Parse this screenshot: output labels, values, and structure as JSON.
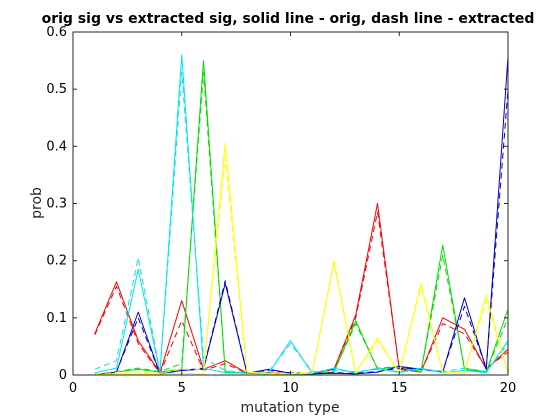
{
  "chart_data": {
    "type": "line",
    "title": "orig sig vs extracted sig, solid line - orig, dash line - extracted",
    "xlabel": "mutation type",
    "ylabel": "prob",
    "xlim": [
      0,
      20
    ],
    "ylim": [
      0,
      0.6
    ],
    "xticks": [
      0,
      5,
      10,
      15,
      20
    ],
    "yticks": [
      0,
      0.1,
      0.2,
      0.3,
      0.4,
      0.5,
      0.6
    ],
    "grid": false,
    "legend": "none",
    "x": [
      1,
      2,
      3,
      4,
      5,
      6,
      7,
      8,
      9,
      10,
      11,
      12,
      13,
      14,
      15,
      16,
      17,
      18,
      19,
      20
    ],
    "series": [
      {
        "color": "#ff0000",
        "style": "solid",
        "values": [
          0.072,
          0.163,
          0.06,
          0.004,
          0.13,
          0.01,
          0.025,
          0.003,
          0.004,
          0.002,
          0.003,
          0.01,
          0.105,
          0.3,
          0.01,
          0.005,
          0.1,
          0.08,
          0.01,
          0.045
        ]
      },
      {
        "color": "#ff0000",
        "style": "dashed",
        "values": [
          0.07,
          0.155,
          0.055,
          0.003,
          0.095,
          0.008,
          0.02,
          0.003,
          0.004,
          0.002,
          0.003,
          0.01,
          0.1,
          0.285,
          0.012,
          0.006,
          0.09,
          0.072,
          0.012,
          0.04
        ]
      },
      {
        "color": "#00dd00",
        "style": "solid",
        "values": [
          0.0,
          0.005,
          0.01,
          0.005,
          0.01,
          0.55,
          0.005,
          0.003,
          0.002,
          0.002,
          0.002,
          0.005,
          0.095,
          0.01,
          0.015,
          0.005,
          0.227,
          0.01,
          0.005,
          0.115
        ]
      },
      {
        "color": "#00dd00",
        "style": "dashed",
        "values": [
          0.001,
          0.006,
          0.012,
          0.006,
          0.02,
          0.53,
          0.006,
          0.003,
          0.002,
          0.002,
          0.003,
          0.006,
          0.09,
          0.012,
          0.015,
          0.006,
          0.21,
          0.012,
          0.006,
          0.1
        ]
      },
      {
        "color": "#0000cc",
        "style": "solid",
        "values": [
          0.0,
          0.005,
          0.11,
          0.002,
          0.008,
          0.01,
          0.16,
          0.003,
          0.01,
          0.003,
          0.002,
          0.003,
          0.002,
          0.005,
          0.015,
          0.01,
          0.005,
          0.135,
          0.01,
          0.557
        ]
      },
      {
        "color": "#0000cc",
        "style": "dashed",
        "values": [
          0.001,
          0.006,
          0.1,
          0.002,
          0.008,
          0.012,
          0.165,
          0.003,
          0.008,
          0.004,
          0.003,
          0.004,
          0.003,
          0.006,
          0.012,
          0.01,
          0.006,
          0.12,
          0.012,
          0.5
        ]
      },
      {
        "color": "#00e5ee",
        "style": "solid",
        "values": [
          0.004,
          0.012,
          0.185,
          0.004,
          0.56,
          0.012,
          0.004,
          0.003,
          0.003,
          0.06,
          0.003,
          0.012,
          0.004,
          0.012,
          0.004,
          0.012,
          0.004,
          0.008,
          0.004,
          0.06
        ]
      },
      {
        "color": "#00e5ee",
        "style": "dashed",
        "values": [
          0.01,
          0.025,
          0.205,
          0.006,
          0.53,
          0.03,
          0.008,
          0.004,
          0.006,
          0.055,
          0.006,
          0.008,
          0.006,
          0.01,
          0.006,
          0.01,
          0.006,
          0.012,
          0.006,
          0.055
        ]
      },
      {
        "color": "#ffff00",
        "style": "solid",
        "values": [
          0.0,
          0.002,
          0.002,
          0.002,
          0.003,
          0.002,
          0.405,
          0.005,
          0.002,
          0.002,
          0.003,
          0.2,
          0.003,
          0.065,
          0.002,
          0.16,
          0.003,
          0.003,
          0.14,
          0.002
        ]
      },
      {
        "color": "#ffff00",
        "style": "dashed",
        "values": [
          0.001,
          0.005,
          0.005,
          0.003,
          0.01,
          0.01,
          0.38,
          0.005,
          0.003,
          0.003,
          0.005,
          0.195,
          0.005,
          0.06,
          0.005,
          0.155,
          0.005,
          0.005,
          0.13,
          0.005
        ]
      }
    ]
  }
}
